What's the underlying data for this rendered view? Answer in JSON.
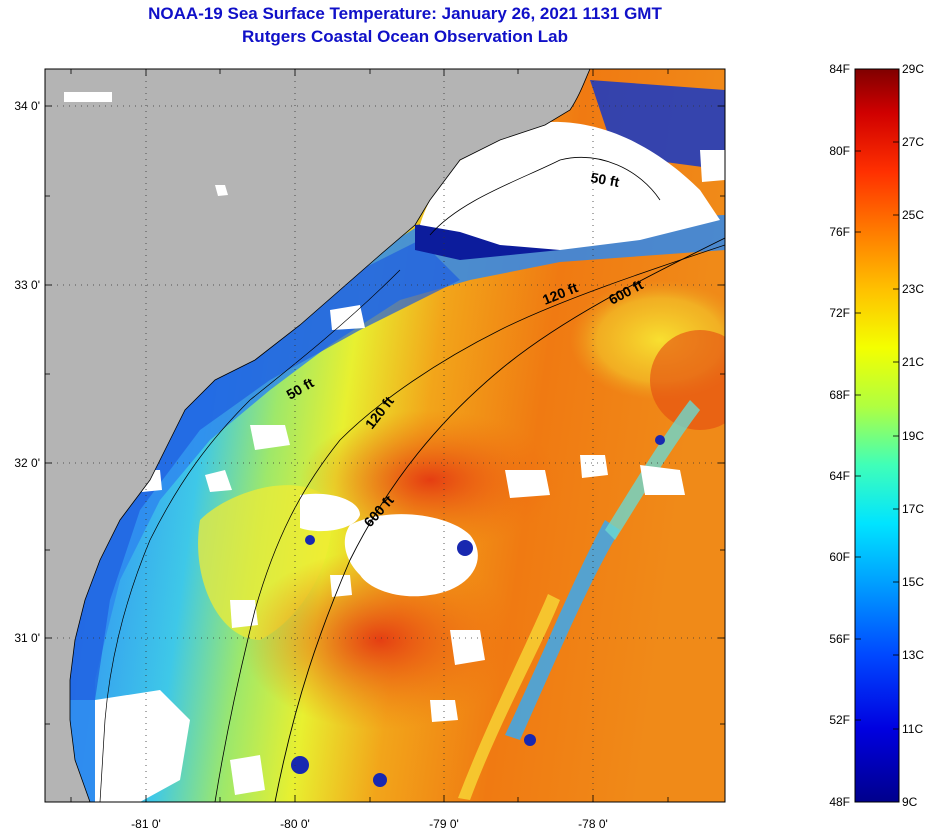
{
  "header": {
    "title": "NOAA-19 Sea Surface Temperature:  January 26, 2021 1131 GMT",
    "subtitle": "Rutgers Coastal Ocean Observation Lab"
  },
  "map": {
    "lon_ticks": [
      "-81 0'",
      "-80 0'",
      "-79 0'",
      "-78 0'"
    ],
    "lat_ticks": [
      "34 0'",
      "33 0'",
      "32 0'",
      "31 0'"
    ],
    "contour_labels": [
      "50 ft",
      "120 ft",
      "600 ft",
      "50 ft",
      "120 ft",
      "600 ft"
    ]
  },
  "colorbar": {
    "fahrenheit": [
      "84F",
      "80F",
      "76F",
      "72F",
      "68F",
      "64F",
      "60F",
      "56F",
      "52F",
      "48F"
    ],
    "celsius": [
      "29C",
      "27C",
      "25C",
      "23C",
      "21C",
      "19C",
      "17C",
      "15C",
      "13C",
      "11C",
      "9C"
    ]
  },
  "colors": {
    "title": "#1010c8",
    "land": "#b4b4b4",
    "cloud": "#ffffff",
    "cold": "#08087a",
    "warm": "#e04a0a"
  }
}
